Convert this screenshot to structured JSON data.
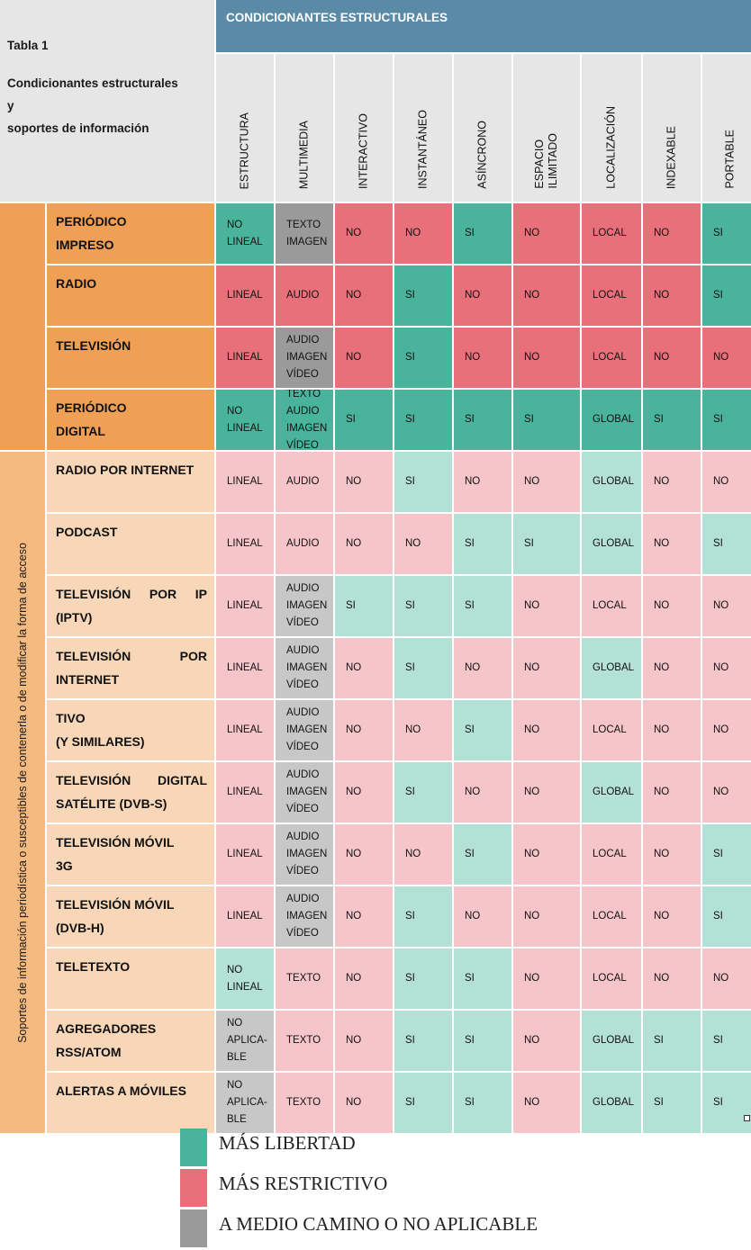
{
  "table": {
    "caption": "Tabla 1",
    "title_lines": [
      "Condicionantes estructurales",
      "y",
      "soportes de información"
    ],
    "section_header": "CONDICIONANTES ESTRUCTURALES",
    "columns": [
      "ESTRUCTURA",
      "MULTIMEDIA",
      "INTERACTIVO",
      "INSTANTÁNEO",
      "ASÍNCRONO",
      "ESPACIO\nILIMITADO",
      "LOCALIZACIÓN",
      "INDEXABLE",
      "PORTABLE"
    ],
    "groups": [
      {
        "label": ""
      },
      {
        "label": "Soportes de información periodística o susceptibles de contenerla o de modificar la forma de acceso"
      }
    ],
    "rows": [
      {
        "name": [
          "PERIÓDICO",
          "IMPRESO"
        ],
        "justify": false,
        "group": 0,
        "cells": [
          {
            "v": [
              "NO",
              "LINEAL"
            ],
            "c": "g"
          },
          {
            "v": [
              "TEXTO",
              "IMAGEN"
            ],
            "c": "gy"
          },
          {
            "v": [
              "NO"
            ],
            "c": "r"
          },
          {
            "v": [
              "NO"
            ],
            "c": "r"
          },
          {
            "v": [
              "SI"
            ],
            "c": "g"
          },
          {
            "v": [
              "NO"
            ],
            "c": "r"
          },
          {
            "v": [
              "LOCAL"
            ],
            "c": "r"
          },
          {
            "v": [
              "NO"
            ],
            "c": "r"
          },
          {
            "v": [
              "SI"
            ],
            "c": "g"
          }
        ]
      },
      {
        "name": [
          "RADIO"
        ],
        "justify": false,
        "group": 0,
        "cells": [
          {
            "v": [
              "LINEAL"
            ],
            "c": "r"
          },
          {
            "v": [
              "AUDIO"
            ],
            "c": "r"
          },
          {
            "v": [
              "NO"
            ],
            "c": "r"
          },
          {
            "v": [
              "SI"
            ],
            "c": "g"
          },
          {
            "v": [
              "NO"
            ],
            "c": "r"
          },
          {
            "v": [
              "NO"
            ],
            "c": "r"
          },
          {
            "v": [
              "LOCAL"
            ],
            "c": "r"
          },
          {
            "v": [
              "NO"
            ],
            "c": "r"
          },
          {
            "v": [
              "SI"
            ],
            "c": "g"
          }
        ]
      },
      {
        "name": [
          "TELEVISIÓN"
        ],
        "justify": false,
        "group": 0,
        "cells": [
          {
            "v": [
              "LINEAL"
            ],
            "c": "r"
          },
          {
            "v": [
              "AUDIO",
              "IMAGEN",
              "VÍDEO"
            ],
            "c": "gy"
          },
          {
            "v": [
              "NO"
            ],
            "c": "r"
          },
          {
            "v": [
              "SI"
            ],
            "c": "g"
          },
          {
            "v": [
              "NO"
            ],
            "c": "r"
          },
          {
            "v": [
              "NO"
            ],
            "c": "r"
          },
          {
            "v": [
              "LOCAL"
            ],
            "c": "r"
          },
          {
            "v": [
              "NO"
            ],
            "c": "r"
          },
          {
            "v": [
              "NO"
            ],
            "c": "r"
          }
        ]
      },
      {
        "name": [
          "PERIÓDICO",
          "DIGITAL"
        ],
        "justify": false,
        "group": 0,
        "cells": [
          {
            "v": [
              "NO",
              "LINEAL"
            ],
            "c": "g"
          },
          {
            "v": [
              "TEXTO",
              "AUDIO",
              "IMAGEN",
              "VÍDEO"
            ],
            "c": "g"
          },
          {
            "v": [
              "SI"
            ],
            "c": "g"
          },
          {
            "v": [
              "SI"
            ],
            "c": "g"
          },
          {
            "v": [
              "SI"
            ],
            "c": "g"
          },
          {
            "v": [
              "SI"
            ],
            "c": "g"
          },
          {
            "v": [
              "GLOBAL"
            ],
            "c": "g"
          },
          {
            "v": [
              "SI"
            ],
            "c": "g"
          },
          {
            "v": [
              "SI"
            ],
            "c": "g"
          }
        ]
      },
      {
        "name": [
          "RADIO POR INTERNET"
        ],
        "justify": false,
        "group": 1,
        "cells": [
          {
            "v": [
              "LINEAL"
            ],
            "c": "r"
          },
          {
            "v": [
              "AUDIO"
            ],
            "c": "r"
          },
          {
            "v": [
              "NO"
            ],
            "c": "r"
          },
          {
            "v": [
              "SI"
            ],
            "c": "g"
          },
          {
            "v": [
              "NO"
            ],
            "c": "r"
          },
          {
            "v": [
              "NO"
            ],
            "c": "r"
          },
          {
            "v": [
              "GLOBAL"
            ],
            "c": "g"
          },
          {
            "v": [
              "NO"
            ],
            "c": "r"
          },
          {
            "v": [
              "NO"
            ],
            "c": "r"
          }
        ]
      },
      {
        "name": [
          "PODCAST"
        ],
        "justify": false,
        "group": 1,
        "cells": [
          {
            "v": [
              "LINEAL"
            ],
            "c": "r"
          },
          {
            "v": [
              "AUDIO"
            ],
            "c": "r"
          },
          {
            "v": [
              "NO"
            ],
            "c": "r"
          },
          {
            "v": [
              "NO"
            ],
            "c": "r"
          },
          {
            "v": [
              "SI"
            ],
            "c": "g"
          },
          {
            "v": [
              "SI"
            ],
            "c": "g"
          },
          {
            "v": [
              "GLOBAL"
            ],
            "c": "g"
          },
          {
            "v": [
              "NO"
            ],
            "c": "r"
          },
          {
            "v": [
              "SI"
            ],
            "c": "g"
          }
        ]
      },
      {
        "name": [
          "TELEVISIÓN POR IP",
          "(IPTV)"
        ],
        "justify": true,
        "group": 1,
        "cells": [
          {
            "v": [
              "LINEAL"
            ],
            "c": "r"
          },
          {
            "v": [
              "AUDIO",
              "IMAGEN",
              "VÍDEO"
            ],
            "c": "gy"
          },
          {
            "v": [
              "SI"
            ],
            "c": "g"
          },
          {
            "v": [
              "SI"
            ],
            "c": "g"
          },
          {
            "v": [
              "SI"
            ],
            "c": "g"
          },
          {
            "v": [
              "NO"
            ],
            "c": "r"
          },
          {
            "v": [
              "LOCAL"
            ],
            "c": "r"
          },
          {
            "v": [
              "NO"
            ],
            "c": "r"
          },
          {
            "v": [
              "NO"
            ],
            "c": "r"
          }
        ]
      },
      {
        "name": [
          "TELEVISIÓN POR",
          "INTERNET"
        ],
        "justify": true,
        "group": 1,
        "cells": [
          {
            "v": [
              "LINEAL"
            ],
            "c": "r"
          },
          {
            "v": [
              "AUDIO",
              "IMAGEN",
              "VÍDEO"
            ],
            "c": "gy"
          },
          {
            "v": [
              "NO"
            ],
            "c": "r"
          },
          {
            "v": [
              "SI"
            ],
            "c": "g"
          },
          {
            "v": [
              "NO"
            ],
            "c": "r"
          },
          {
            "v": [
              "NO"
            ],
            "c": "r"
          },
          {
            "v": [
              "GLOBAL"
            ],
            "c": "g"
          },
          {
            "v": [
              "NO"
            ],
            "c": "r"
          },
          {
            "v": [
              "NO"
            ],
            "c": "r"
          }
        ]
      },
      {
        "name": [
          "TIVO",
          "(Y SIMILARES)"
        ],
        "justify": false,
        "group": 1,
        "cells": [
          {
            "v": [
              "LINEAL"
            ],
            "c": "r"
          },
          {
            "v": [
              "AUDIO",
              "IMAGEN",
              "VÍDEO"
            ],
            "c": "gy"
          },
          {
            "v": [
              "NO"
            ],
            "c": "r"
          },
          {
            "v": [
              "NO"
            ],
            "c": "r"
          },
          {
            "v": [
              "SI"
            ],
            "c": "g"
          },
          {
            "v": [
              "NO"
            ],
            "c": "r"
          },
          {
            "v": [
              "LOCAL"
            ],
            "c": "r"
          },
          {
            "v": [
              "NO"
            ],
            "c": "r"
          },
          {
            "v": [
              "NO"
            ],
            "c": "r"
          }
        ]
      },
      {
        "name": [
          "TELEVISIÓN DIGITAL",
          "SATÉLITE (DVB-S)"
        ],
        "justify": true,
        "group": 1,
        "cells": [
          {
            "v": [
              "LINEAL"
            ],
            "c": "r"
          },
          {
            "v": [
              "AUDIO",
              "IMAGEN",
              "VÍDEO"
            ],
            "c": "gy"
          },
          {
            "v": [
              "NO"
            ],
            "c": "r"
          },
          {
            "v": [
              "SI"
            ],
            "c": "g"
          },
          {
            "v": [
              "NO"
            ],
            "c": "r"
          },
          {
            "v": [
              "NO"
            ],
            "c": "r"
          },
          {
            "v": [
              "GLOBAL"
            ],
            "c": "g"
          },
          {
            "v": [
              "NO"
            ],
            "c": "r"
          },
          {
            "v": [
              "NO"
            ],
            "c": "r"
          }
        ]
      },
      {
        "name": [
          "TELEVISIÓN MÓVIL",
          "3G"
        ],
        "justify": false,
        "group": 1,
        "cells": [
          {
            "v": [
              "LINEAL"
            ],
            "c": "r"
          },
          {
            "v": [
              "AUDIO",
              "IMAGEN",
              "VÍDEO"
            ],
            "c": "gy"
          },
          {
            "v": [
              "NO"
            ],
            "c": "r"
          },
          {
            "v": [
              "NO"
            ],
            "c": "r"
          },
          {
            "v": [
              "SI"
            ],
            "c": "g"
          },
          {
            "v": [
              "NO"
            ],
            "c": "r"
          },
          {
            "v": [
              "LOCAL"
            ],
            "c": "r"
          },
          {
            "v": [
              "NO"
            ],
            "c": "r"
          },
          {
            "v": [
              "SI"
            ],
            "c": "g"
          }
        ]
      },
      {
        "name": [
          "TELEVISIÓN MÓVIL",
          "(DVB-H)"
        ],
        "justify": false,
        "group": 1,
        "cells": [
          {
            "v": [
              "LINEAL"
            ],
            "c": "r"
          },
          {
            "v": [
              "AUDIO",
              "IMAGEN",
              "VÍDEO"
            ],
            "c": "gy"
          },
          {
            "v": [
              "NO"
            ],
            "c": "r"
          },
          {
            "v": [
              "SI"
            ],
            "c": "g"
          },
          {
            "v": [
              "NO"
            ],
            "c": "r"
          },
          {
            "v": [
              "NO"
            ],
            "c": "r"
          },
          {
            "v": [
              "LOCAL"
            ],
            "c": "r"
          },
          {
            "v": [
              "NO"
            ],
            "c": "r"
          },
          {
            "v": [
              "SI"
            ],
            "c": "g"
          }
        ]
      },
      {
        "name": [
          "TELETEXTO"
        ],
        "justify": false,
        "group": 1,
        "cells": [
          {
            "v": [
              "NO",
              "LINEAL"
            ],
            "c": "g"
          },
          {
            "v": [
              "TEXTO"
            ],
            "c": "r"
          },
          {
            "v": [
              "NO"
            ],
            "c": "r"
          },
          {
            "v": [
              "SI"
            ],
            "c": "g"
          },
          {
            "v": [
              "SI"
            ],
            "c": "g"
          },
          {
            "v": [
              "NO"
            ],
            "c": "r"
          },
          {
            "v": [
              "LOCAL"
            ],
            "c": "r"
          },
          {
            "v": [
              "NO"
            ],
            "c": "r"
          },
          {
            "v": [
              "NO"
            ],
            "c": "r"
          }
        ]
      },
      {
        "name": [
          "AGREGADORES",
          "RSS/ATOM"
        ],
        "justify": false,
        "group": 1,
        "cells": [
          {
            "v": [
              "NO",
              "APLICA-",
              "BLE"
            ],
            "c": "gy"
          },
          {
            "v": [
              "TEXTO"
            ],
            "c": "r"
          },
          {
            "v": [
              "NO"
            ],
            "c": "r"
          },
          {
            "v": [
              "SI"
            ],
            "c": "g"
          },
          {
            "v": [
              "SI"
            ],
            "c": "g"
          },
          {
            "v": [
              "NO"
            ],
            "c": "r"
          },
          {
            "v": [
              "GLOBAL"
            ],
            "c": "g"
          },
          {
            "v": [
              "SI"
            ],
            "c": "g"
          },
          {
            "v": [
              "SI"
            ],
            "c": "g"
          }
        ]
      },
      {
        "name": [
          "ALERTAS A MÓVILES"
        ],
        "justify": false,
        "group": 1,
        "cells": [
          {
            "v": [
              "NO",
              "APLICA-",
              "BLE"
            ],
            "c": "gy"
          },
          {
            "v": [
              "TEXTO"
            ],
            "c": "r"
          },
          {
            "v": [
              "NO"
            ],
            "c": "r"
          },
          {
            "v": [
              "SI"
            ],
            "c": "g"
          },
          {
            "v": [
              "SI"
            ],
            "c": "g"
          },
          {
            "v": [
              "NO"
            ],
            "c": "r"
          },
          {
            "v": [
              "GLOBAL"
            ],
            "c": "g"
          },
          {
            "v": [
              "SI"
            ],
            "c": "g"
          },
          {
            "v": [
              "SI"
            ],
            "c": "g"
          }
        ]
      }
    ]
  },
  "legend": [
    {
      "label": "MÁS LIBERTAD",
      "color": "#49b39b"
    },
    {
      "label": "MÁS RESTRICTIVO",
      "color": "#e7707b"
    },
    {
      "label": "A MEDIO CAMINO O NO APLICABLE",
      "color": "#9a9a9a"
    }
  ],
  "palette": {
    "header_blue": "#5b8aa6",
    "header_gray": "#e6e6e6",
    "group_orange": "#f0a054",
    "group_light_orange": "#f4ba7f",
    "row_light_orange": "#f7d7b7",
    "green_strong": "#49b39b",
    "red_strong": "#e7707b",
    "gray_strong": "#9a9a9a",
    "green_light": "#b4e1d6",
    "red_light": "#f6c5ca",
    "gray_light": "#c7c7c7"
  }
}
